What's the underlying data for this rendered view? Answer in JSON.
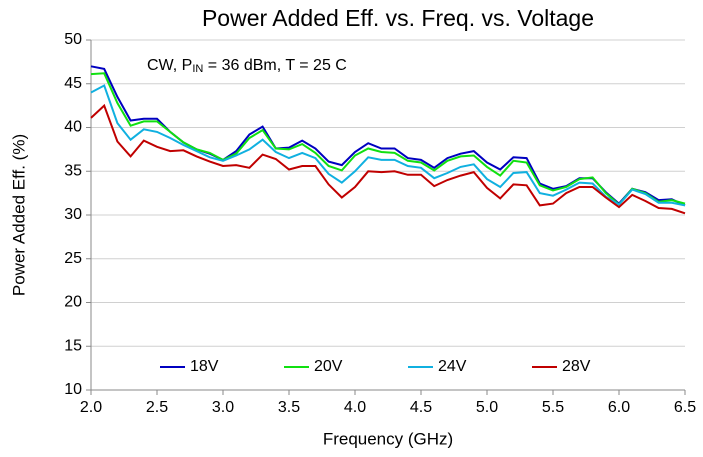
{
  "chart_data": {
    "type": "line",
    "title": "Power Added Eff. vs. Freq. vs. Voltage",
    "annotation": [
      "CW, P",
      "IN",
      " = 36 dBm, T = 25 C"
    ],
    "xlabel": "Frequency (GHz)",
    "ylabel": "Power Added Eff. (%)",
    "x": [
      2.0,
      2.1,
      2.2,
      2.3,
      2.4,
      2.5,
      2.6,
      2.7,
      2.8,
      2.9,
      3.0,
      3.1,
      3.2,
      3.3,
      3.4,
      3.5,
      3.6,
      3.7,
      3.8,
      3.9,
      4.0,
      4.1,
      4.2,
      4.3,
      4.4,
      4.5,
      4.6,
      4.7,
      4.8,
      4.9,
      5.0,
      5.1,
      5.2,
      5.3,
      5.4,
      5.5,
      5.6,
      5.7,
      5.8,
      5.9,
      6.0,
      6.1,
      6.2,
      6.3,
      6.4,
      6.5
    ],
    "series": [
      {
        "name": "18V",
        "color": "#0000c0",
        "values": [
          47,
          46.7,
          43.5,
          40.8,
          41,
          41,
          39.5,
          38.3,
          37.5,
          37,
          36.3,
          37.3,
          39.2,
          40.1,
          37.6,
          37.7,
          38.5,
          37.6,
          36.1,
          35.7,
          37.2,
          38.2,
          37.6,
          37.6,
          36.5,
          36.3,
          35.4,
          36.5,
          37,
          37.3,
          36,
          35.2,
          36.6,
          36.5,
          33.6,
          33,
          33.3,
          34.2,
          34.2,
          32.6,
          31.3,
          33,
          32.6,
          31.7,
          31.8,
          31.1
        ]
      },
      {
        "name": "20V",
        "color": "#10e010",
        "values": [
          46.1,
          46.2,
          42.8,
          40.2,
          40.7,
          40.7,
          39.5,
          38.3,
          37.5,
          37.1,
          36.3,
          37,
          38.8,
          39.7,
          37.6,
          37.5,
          38.1,
          37.1,
          35.6,
          35.1,
          36.8,
          37.6,
          37.2,
          37.1,
          36.2,
          36,
          35.1,
          36.2,
          36.7,
          36.8,
          35.5,
          34.5,
          36.2,
          36,
          33.4,
          32.8,
          33.2,
          34.1,
          34.3,
          32.5,
          31.2,
          33,
          32.5,
          31.5,
          31.7,
          31.3
        ]
      },
      {
        "name": "24V",
        "color": "#10b0e0",
        "values": [
          44,
          44.8,
          40.5,
          38.6,
          39.8,
          39.5,
          38.8,
          38,
          37.3,
          36.6,
          36.2,
          36.8,
          37.5,
          38.6,
          37.2,
          36.5,
          37.1,
          36.5,
          34.7,
          33.7,
          35,
          36.6,
          36.3,
          36.3,
          35.6,
          35.4,
          34.2,
          34.8,
          35.5,
          35.8,
          34.1,
          33.2,
          34.8,
          34.9,
          32.5,
          32.2,
          32.9,
          33.7,
          33.6,
          32.1,
          31.2,
          32.9,
          32.4,
          31.4,
          31.4,
          31.1
        ]
      },
      {
        "name": "28V",
        "color": "#c00000",
        "values": [
          41.1,
          42.5,
          38.4,
          36.7,
          38.5,
          37.8,
          37.3,
          37.4,
          36.7,
          36.1,
          35.6,
          35.7,
          35.4,
          36.9,
          36.4,
          35.2,
          35.6,
          35.6,
          33.5,
          32,
          33.2,
          35,
          34.9,
          35,
          34.6,
          34.6,
          33.3,
          34,
          34.5,
          34.9,
          33.1,
          31.9,
          33.5,
          33.4,
          31.1,
          31.3,
          32.5,
          33.2,
          33.2,
          32,
          30.9,
          32.3,
          31.6,
          30.8,
          30.7,
          30.2
        ]
      }
    ],
    "xlim": [
      2,
      6.5
    ],
    "xticks": [
      {
        "value": 2,
        "label": "2.0"
      },
      2.5,
      {
        "value": 3,
        "label": "3.0"
      },
      3.5,
      {
        "value": 4,
        "label": "4.0"
      },
      4.5,
      {
        "value": 5,
        "label": "5.0"
      },
      5.5,
      {
        "value": 6,
        "label": "6.0"
      },
      6.5
    ],
    "ylim": [
      10,
      50
    ],
    "yticks": [
      10,
      15,
      20,
      25,
      30,
      35,
      40,
      45,
      50
    ],
    "grid": true,
    "legend": "bottom"
  }
}
